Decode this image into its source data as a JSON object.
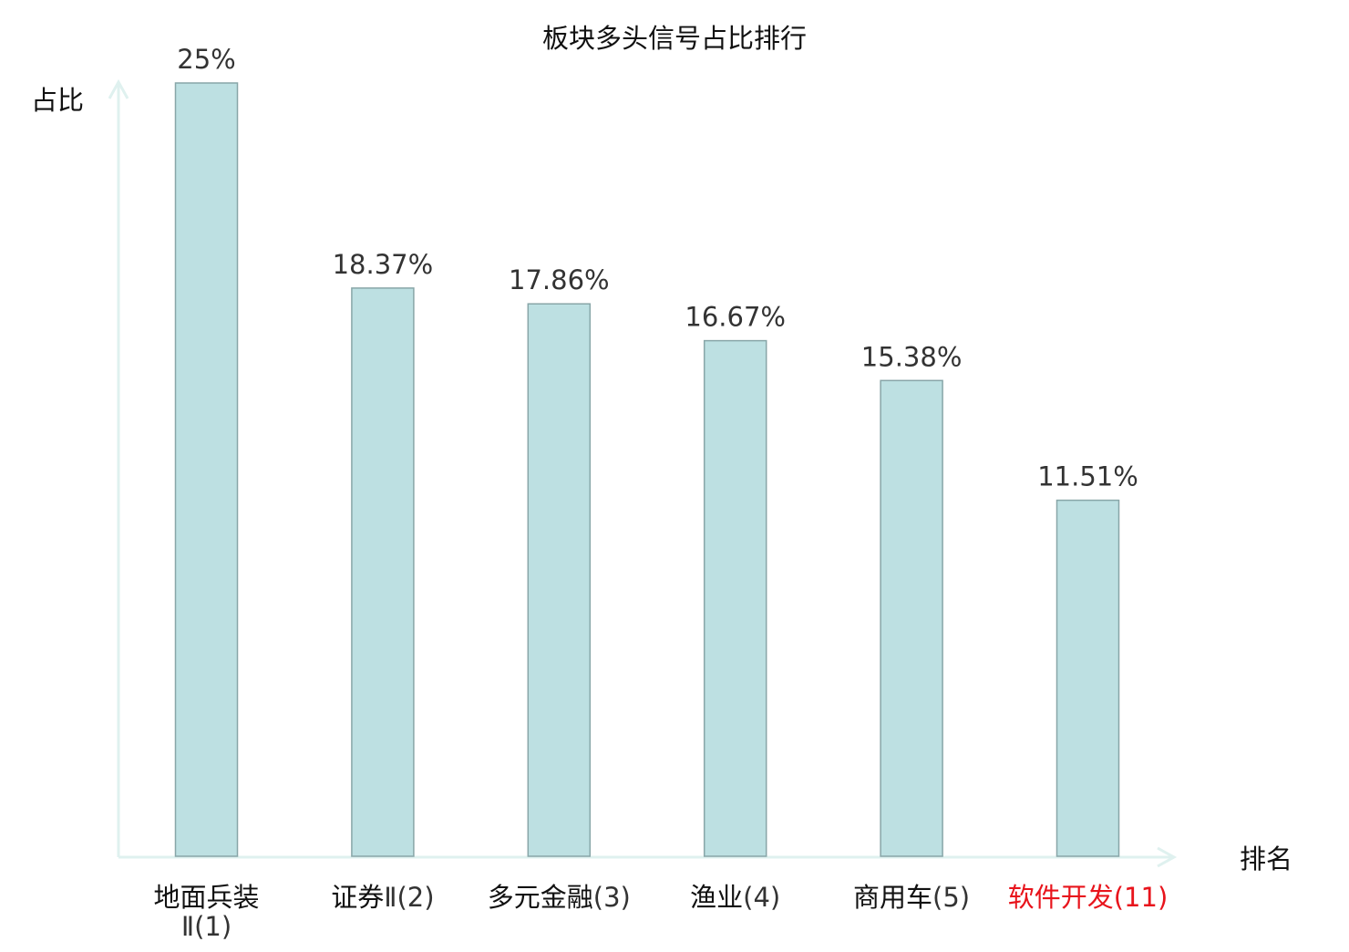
{
  "chart_data": {
    "type": "bar",
    "title": "板块多头信号占比排行",
    "ylabel": "占比",
    "xlabel": "排名",
    "categories": [
      {
        "name": "地面兵装",
        "rank": "Ⅱ(1)",
        "highlight": false
      },
      {
        "name": "证券",
        "rank": "Ⅱ(2)",
        "highlight": false
      },
      {
        "name": "多元金融",
        "rank": "(3)",
        "highlight": false
      },
      {
        "name": "渔业",
        "rank": "(4)",
        "highlight": false
      },
      {
        "name": "商用车",
        "rank": "(5)",
        "highlight": false
      },
      {
        "name": "软件开发",
        "rank": "(11)",
        "highlight": true
      }
    ],
    "values": [
      25,
      18.37,
      17.86,
      16.67,
      15.38,
      11.51
    ],
    "value_labels": [
      "25%",
      "18.37%",
      "17.86%",
      "16.67%",
      "15.38%",
      "11.51%"
    ],
    "ylim": [
      0,
      25
    ],
    "grid": false,
    "legend": "none",
    "colors": {
      "bar_fill": "#bde0e2",
      "bar_stroke": "#88a6a8",
      "axis": "#dff1ef",
      "label_text": "#333333",
      "category_text": "#111111",
      "rank_text": "#333333",
      "highlight_text": "#e8141c"
    }
  }
}
